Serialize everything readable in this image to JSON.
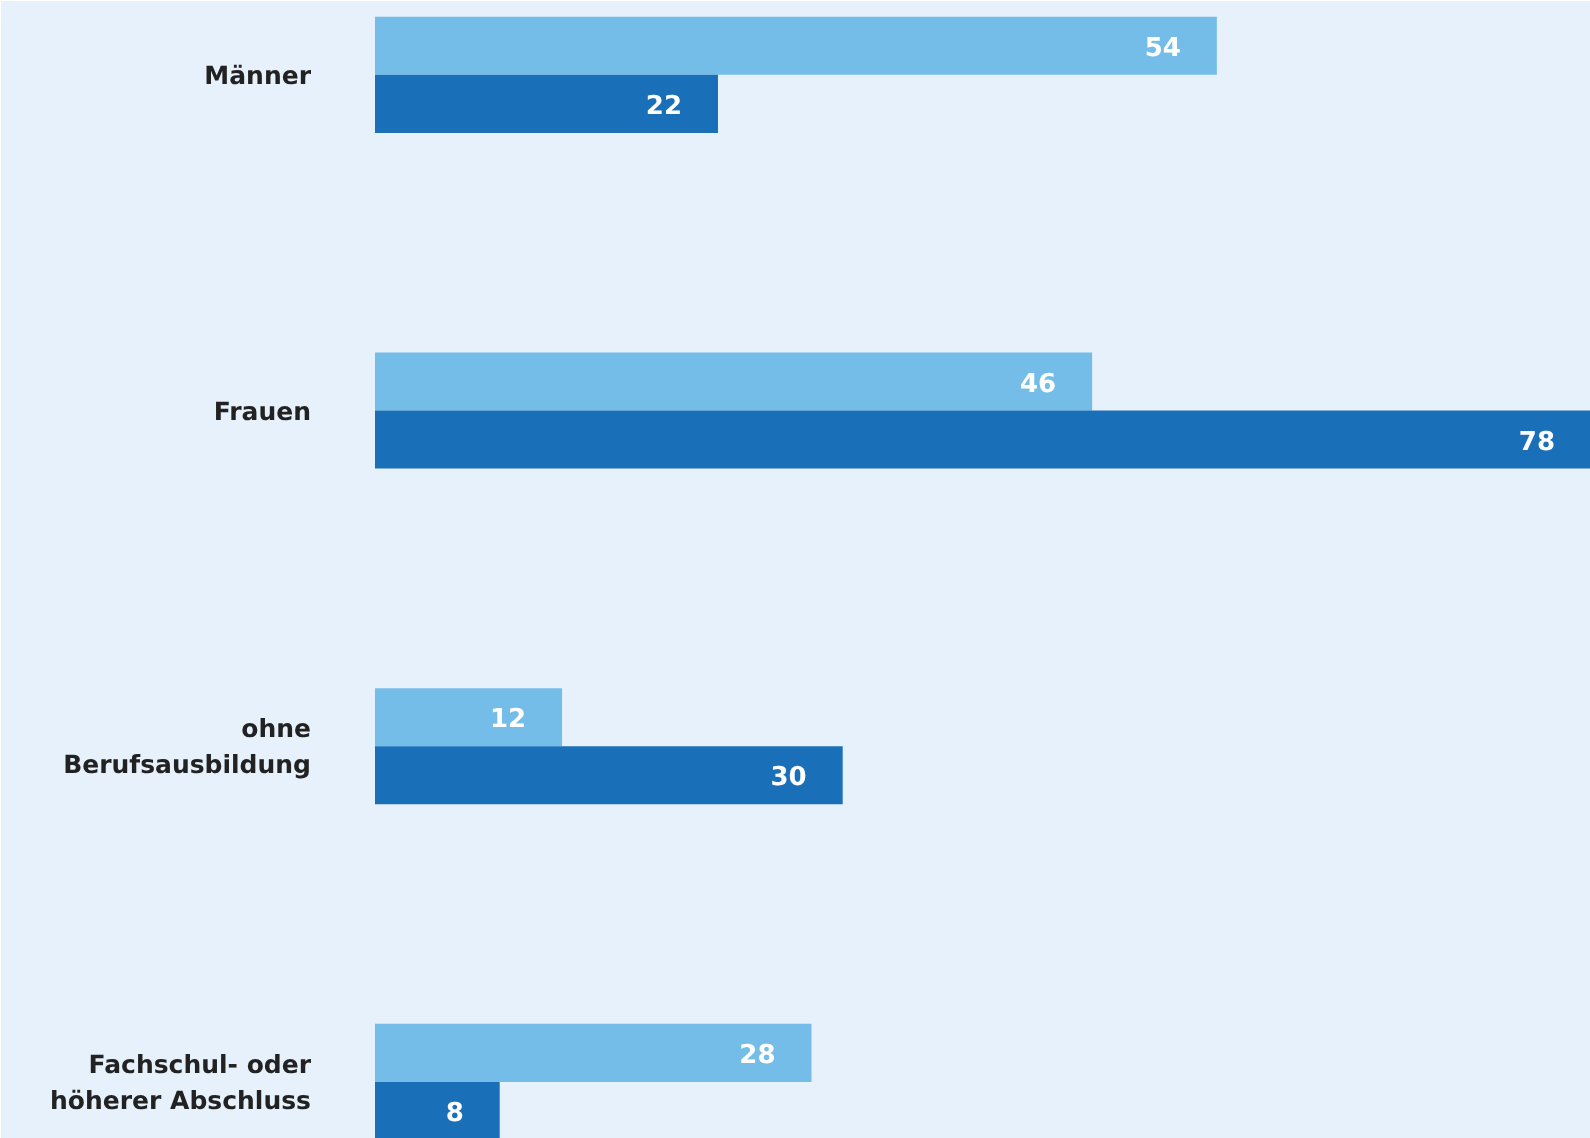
{
  "chart_data": {
    "type": "bar",
    "orientation": "horizontal",
    "categories": [
      "Männer",
      "Frauen",
      "ohne\nBerufsausbildung",
      "Fachschul- oder\nhöherer Abschluss"
    ],
    "series": [
      {
        "color": "#74bde8",
        "values": [
          54,
          46,
          12,
          28
        ]
      },
      {
        "color": "#1a70b8",
        "values": [
          22,
          78,
          30,
          8
        ]
      }
    ],
    "data_labels": true,
    "grid": false
  }
}
